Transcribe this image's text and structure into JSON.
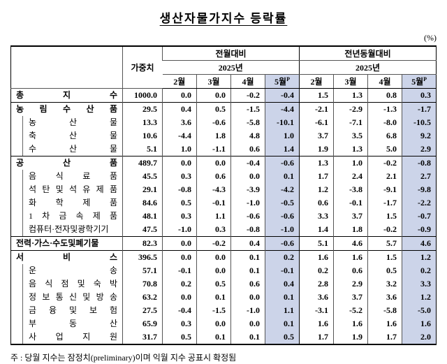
{
  "title": "생산자물가지수 등락률",
  "unit_label": "(%)",
  "footnote": "주 : 당월 지수는 잠정치(preliminary)이며 익월 지수 공표시 확정됨",
  "colors": {
    "highlight": "#ccd4e9"
  },
  "chart_data": {
    "type": "table",
    "title": "생산자물가지수 등락률",
    "unit": "%",
    "header": {
      "weight": "가중치",
      "mom_group": "전월대비",
      "yoy_group": "전년동월대비",
      "year": "2025년",
      "months": [
        "2월",
        "3월",
        "4월",
        "5월P"
      ]
    },
    "rows": [
      {
        "label": "총 지 수",
        "level": 0,
        "bold": true,
        "section": false,
        "weight": "1000.0",
        "mom": [
          "0.0",
          "0.0",
          "-0.2",
          "-0.4"
        ],
        "yoy": [
          "1.5",
          "1.3",
          "0.8",
          "0.3"
        ]
      },
      {
        "label": "농 림 수 산 품",
        "level": 0,
        "bold": true,
        "section": true,
        "weight": "29.5",
        "mom": [
          "0.4",
          "0.5",
          "-1.5",
          "-4.4"
        ],
        "yoy": [
          "-2.1",
          "-2.9",
          "-1.3",
          "-1.7"
        ]
      },
      {
        "label": "농 산 물",
        "level": 1,
        "bold": false,
        "section": false,
        "weight": "13.3",
        "mom": [
          "3.6",
          "-0.6",
          "-5.8",
          "-10.1"
        ],
        "yoy": [
          "-6.1",
          "-7.1",
          "-8.0",
          "-10.5"
        ]
      },
      {
        "label": "축 산 물",
        "level": 1,
        "bold": false,
        "section": false,
        "weight": "10.6",
        "mom": [
          "-4.4",
          "1.8",
          "4.8",
          "1.0"
        ],
        "yoy": [
          "3.7",
          "3.5",
          "6.8",
          "9.2"
        ]
      },
      {
        "label": "수 산 물",
        "level": 1,
        "bold": false,
        "section": false,
        "weight": "5.1",
        "mom": [
          "1.0",
          "-1.1",
          "0.6",
          "1.4"
        ],
        "yoy": [
          "1.9",
          "1.3",
          "5.0",
          "2.9"
        ]
      },
      {
        "label": "공 산 품",
        "level": 0,
        "bold": true,
        "section": true,
        "weight": "489.7",
        "mom": [
          "0.0",
          "0.0",
          "-0.4",
          "-0.6"
        ],
        "yoy": [
          "1.3",
          "1.0",
          "-0.2",
          "-0.8"
        ]
      },
      {
        "label": "음 식 료 품",
        "level": 1,
        "bold": false,
        "section": false,
        "weight": "45.5",
        "mom": [
          "0.3",
          "0.6",
          "0.0",
          "0.1"
        ],
        "yoy": [
          "1.7",
          "2.4",
          "2.1",
          "2.7"
        ]
      },
      {
        "label": "석 탄 및 석 유 제 품",
        "level": 1,
        "bold": false,
        "section": false,
        "weight": "29.1",
        "mom": [
          "-0.8",
          "-4.3",
          "-3.9",
          "-4.2"
        ],
        "yoy": [
          "1.2",
          "-3.8",
          "-9.1",
          "-9.8"
        ]
      },
      {
        "label": "화 학 제 품",
        "level": 1,
        "bold": false,
        "section": false,
        "weight": "84.6",
        "mom": [
          "0.5",
          "-0.1",
          "-1.0",
          "-0.5"
        ],
        "yoy": [
          "0.6",
          "-0.1",
          "-1.7",
          "-2.2"
        ]
      },
      {
        "label": "1 차 금 속 제 품",
        "level": 1,
        "bold": false,
        "section": false,
        "weight": "48.1",
        "mom": [
          "0.3",
          "1.1",
          "-0.6",
          "-0.6"
        ],
        "yoy": [
          "3.3",
          "3.7",
          "1.5",
          "-0.7"
        ]
      },
      {
        "label": "컴퓨터·전자및광학기기",
        "level": 1,
        "bold": false,
        "section": false,
        "weight": "47.5",
        "mom": [
          "-1.0",
          "0.3",
          "-0.8",
          "-1.0"
        ],
        "yoy": [
          "1.4",
          "1.8",
          "-0.2",
          "-0.9"
        ]
      },
      {
        "label": "전력·가스·수도및폐기물",
        "level": 0,
        "bold": true,
        "section": true,
        "weight": "82.3",
        "mom": [
          "0.0",
          "-0.2",
          "0.4",
          "-0.6"
        ],
        "yoy": [
          "5.1",
          "4.6",
          "5.7",
          "4.6"
        ]
      },
      {
        "label": "서 비 스",
        "level": 0,
        "bold": true,
        "section": true,
        "weight": "396.5",
        "mom": [
          "0.0",
          "0.0",
          "0.1",
          "0.2"
        ],
        "yoy": [
          "1.6",
          "1.6",
          "1.5",
          "1.2"
        ]
      },
      {
        "label": "운 송",
        "level": 1,
        "bold": false,
        "section": false,
        "weight": "57.1",
        "mom": [
          "-0.1",
          "0.0",
          "0.1",
          "-0.1"
        ],
        "yoy": [
          "0.2",
          "0.6",
          "0.5",
          "0.2"
        ]
      },
      {
        "label": "음 식 점 및 숙 박",
        "level": 1,
        "bold": false,
        "section": false,
        "weight": "70.8",
        "mom": [
          "0.2",
          "0.5",
          "0.6",
          "0.4"
        ],
        "yoy": [
          "2.8",
          "2.9",
          "3.2",
          "3.3"
        ]
      },
      {
        "label": "정 보 통 신 및 방 송",
        "level": 1,
        "bold": false,
        "section": false,
        "weight": "63.2",
        "mom": [
          "0.0",
          "0.1",
          "0.0",
          "0.1"
        ],
        "yoy": [
          "3.6",
          "3.7",
          "3.6",
          "1.2"
        ]
      },
      {
        "label": "금 융 및 보 험",
        "level": 1,
        "bold": false,
        "section": false,
        "weight": "27.5",
        "mom": [
          "-0.4",
          "-1.5",
          "-1.0",
          "1.1"
        ],
        "yoy": [
          "-3.1",
          "-5.2",
          "-5.8",
          "-5.0"
        ]
      },
      {
        "label": "부 동 산",
        "level": 1,
        "bold": false,
        "section": false,
        "weight": "65.9",
        "mom": [
          "0.3",
          "0.0",
          "0.0",
          "0.1"
        ],
        "yoy": [
          "1.6",
          "1.6",
          "1.6",
          "1.6"
        ]
      },
      {
        "label": "사 업 지 원",
        "level": 1,
        "bold": false,
        "section": false,
        "weight": "31.7",
        "mom": [
          "0.5",
          "0.1",
          "0.1",
          "0.5"
        ],
        "yoy": [
          "1.7",
          "1.9",
          "1.7",
          "2.0"
        ]
      }
    ]
  }
}
